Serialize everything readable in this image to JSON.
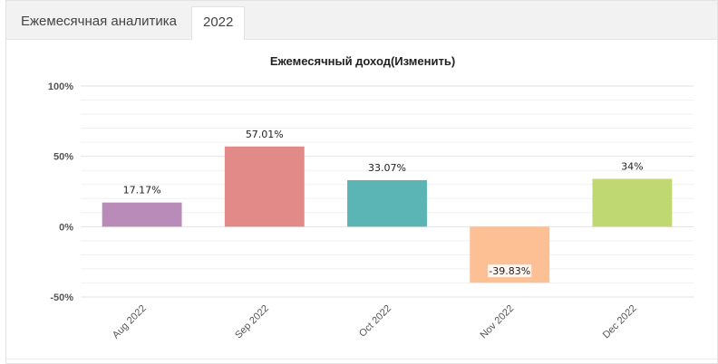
{
  "tabs": [
    {
      "label": "Ежемесячная аналитика",
      "active": false
    },
    {
      "label": "2022",
      "active": true
    }
  ],
  "chart_data": {
    "type": "bar",
    "title": "Ежемесячный доход(Изменить)",
    "categories": [
      "Aug 2022",
      "Sep 2022",
      "Oct 2022",
      "Nov 2022",
      "Dec 2022"
    ],
    "values": [
      17.17,
      57.01,
      33.07,
      -39.83,
      34
    ],
    "data_labels": [
      "17.17%",
      "57.01%",
      "33.07%",
      "-39.83%",
      "34%"
    ],
    "colors": [
      "#b98bb9",
      "#e28a87",
      "#5ab5b4",
      "#fdbf94",
      "#bfd872"
    ],
    "ylim": [
      -50,
      100
    ],
    "yticks": [
      100,
      50,
      0,
      -50
    ],
    "ytick_labels": [
      "100%",
      "50%",
      "0%",
      "-50%"
    ],
    "grid": true,
    "legend": false,
    "xlabel": "",
    "ylabel": ""
  }
}
